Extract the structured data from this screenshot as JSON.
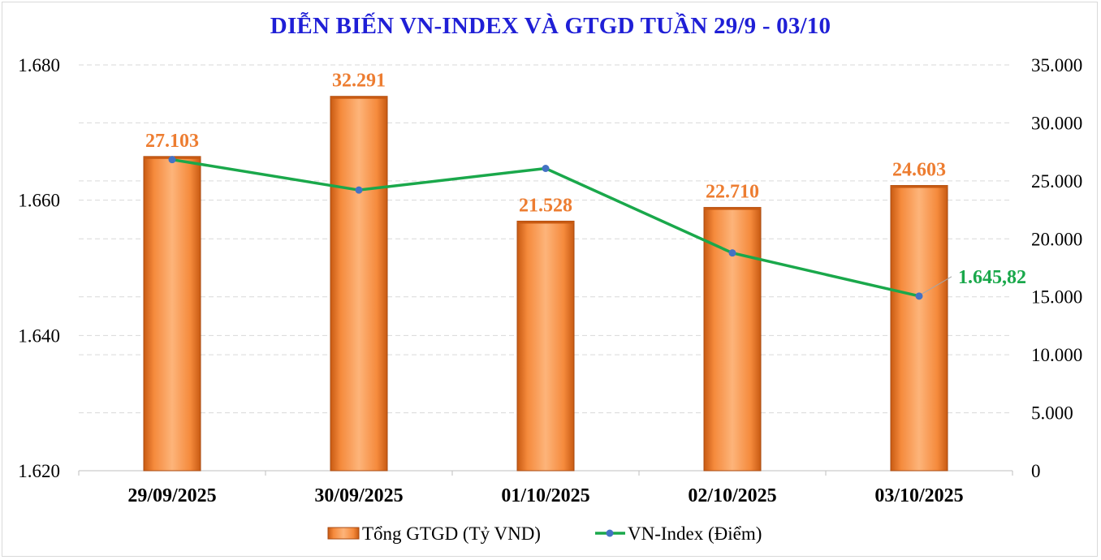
{
  "chart_data": {
    "type": "bar+line",
    "title": "DIỄN BIẾN VN-INDEX VÀ GTGD TUẦN 29/9 - 03/10",
    "categories": [
      "29/09/2025",
      "30/09/2025",
      "01/10/2025",
      "02/10/2025",
      "03/10/2025"
    ],
    "bar_series": {
      "name": "Tổng GTGD (Tỷ VND)",
      "axis": "right",
      "values": [
        27103,
        32291,
        21528,
        22710,
        24603
      ],
      "labels": [
        "27.103",
        "32.291",
        "21.528",
        "22.710",
        "24.603"
      ],
      "color": "#f58a3c"
    },
    "line_series": {
      "name": "VN-Index (Điểm)",
      "axis": "left",
      "values": [
        1666.0,
        1661.5,
        1664.7,
        1652.2,
        1645.82
      ],
      "last_label": "1.645,82",
      "color": "#1aa84b",
      "marker_color": "#4472c4"
    },
    "left_axis": {
      "min": 1620,
      "max": 1680,
      "ticks": [
        "1.620",
        "1.640",
        "1.660",
        "1.680"
      ],
      "tick_values": [
        1620,
        1640,
        1660,
        1680
      ]
    },
    "right_axis": {
      "min": 0,
      "max": 35000,
      "ticks": [
        "0",
        "5.000",
        "10.000",
        "15.000",
        "20.000",
        "25.000",
        "30.000",
        "35.000"
      ],
      "tick_values": [
        0,
        5000,
        10000,
        15000,
        20000,
        25000,
        30000,
        35000
      ]
    },
    "grid": true,
    "legend_position": "bottom"
  }
}
